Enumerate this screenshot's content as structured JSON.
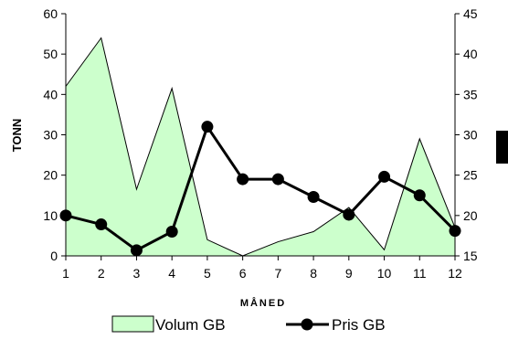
{
  "chart_data": {
    "type": "area+line",
    "title": "",
    "categories": [
      "1",
      "2",
      "3",
      "4",
      "5",
      "6",
      "7",
      "8",
      "9",
      "10",
      "11",
      "12"
    ],
    "xlabel": "MÅNED",
    "ylabel": "TONN",
    "y_left": {
      "min": 0,
      "max": 60,
      "ticks": [
        "0",
        "10",
        "20",
        "30",
        "40",
        "50",
        "60"
      ]
    },
    "y_right": {
      "min": 15,
      "max": 45,
      "ticks": [
        "15",
        "20",
        "25",
        "30",
        "35",
        "40",
        "45"
      ]
    },
    "grid": false,
    "legend_position": "bottom",
    "series": [
      {
        "name": "Volum GB",
        "type": "area",
        "axis": "left",
        "values": [
          42,
          54,
          16.5,
          41.5,
          4,
          0,
          3.5,
          6,
          12,
          1.5,
          29,
          7
        ],
        "color": "#ccffcc"
      },
      {
        "name": "Pris GB",
        "type": "line",
        "axis": "right",
        "values": [
          20,
          18.9,
          15.7,
          18,
          31,
          24.5,
          24.5,
          22.3,
          20.1,
          24.8,
          22.5,
          18.1
        ],
        "color": "#000000"
      }
    ]
  }
}
